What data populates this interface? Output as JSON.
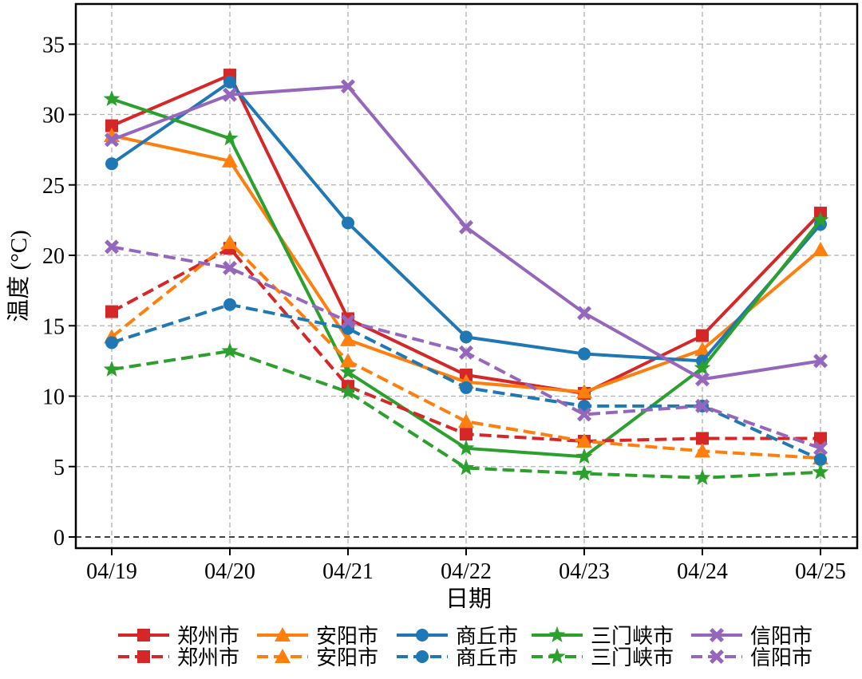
{
  "chart_data": {
    "type": "line",
    "ylabel": "温度 (°C)",
    "xlabel": "日期",
    "categories": [
      "04/19",
      "04/20",
      "04/21",
      "04/22",
      "04/23",
      "04/24",
      "04/25"
    ],
    "ylim": [
      0,
      37.5
    ],
    "yticks": [
      0,
      5,
      10,
      15,
      20,
      25,
      30,
      35
    ],
    "grid": true,
    "zero_line": true,
    "legend_position": "bottom",
    "series": [
      {
        "name": "郑州市",
        "line": "solid",
        "color": "#d62728",
        "marker": "square",
        "values": [
          29.2,
          32.8,
          15.5,
          11.5,
          10.2,
          14.3,
          23.0
        ]
      },
      {
        "name": "安阳市",
        "line": "solid",
        "color": "#ff7f0e",
        "marker": "triangle",
        "values": [
          28.5,
          26.7,
          14.0,
          11.0,
          10.3,
          13.3,
          20.4
        ]
      },
      {
        "name": "商丘市",
        "line": "solid",
        "color": "#1f77b4",
        "marker": "circle",
        "values": [
          26.5,
          32.3,
          22.3,
          14.2,
          13.0,
          12.5,
          22.2
        ]
      },
      {
        "name": "三门峡市",
        "line": "solid",
        "color": "#2ca02c",
        "marker": "star",
        "values": [
          31.1,
          28.3,
          11.7,
          6.3,
          5.7,
          12.0,
          22.5
        ]
      },
      {
        "name": "信阳市",
        "line": "solid",
        "color": "#9467bd",
        "marker": "x",
        "values": [
          28.2,
          31.4,
          32.0,
          22.0,
          15.9,
          11.2,
          12.5
        ]
      },
      {
        "name": "郑州市",
        "line": "dashed",
        "color": "#d62728",
        "marker": "square",
        "values": [
          16.0,
          20.5,
          10.7,
          7.3,
          6.8,
          7.0,
          7.0
        ]
      },
      {
        "name": "安阳市",
        "line": "dashed",
        "color": "#ff7f0e",
        "marker": "triangle",
        "values": [
          14.2,
          20.9,
          12.5,
          8.2,
          6.8,
          6.1,
          5.6
        ]
      },
      {
        "name": "商丘市",
        "line": "dashed",
        "color": "#1f77b4",
        "marker": "circle",
        "values": [
          13.8,
          16.5,
          14.8,
          10.6,
          9.3,
          9.3,
          5.5
        ]
      },
      {
        "name": "三门峡市",
        "line": "dashed",
        "color": "#2ca02c",
        "marker": "star",
        "values": [
          11.9,
          13.2,
          10.3,
          4.9,
          4.5,
          4.2,
          4.6
        ]
      },
      {
        "name": "信阳市",
        "line": "dashed",
        "color": "#9467bd",
        "marker": "x",
        "values": [
          20.6,
          19.1,
          15.3,
          13.1,
          8.7,
          9.3,
          6.3
        ]
      }
    ]
  }
}
